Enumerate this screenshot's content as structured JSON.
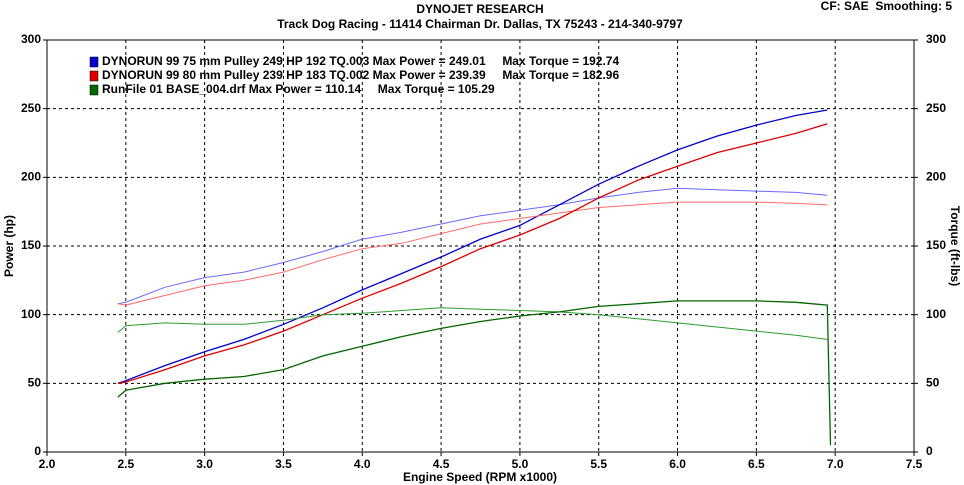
{
  "chart_data": {
    "type": "line",
    "title": "DYNOJET RESEARCH",
    "subtitle": "Track Dog Racing - 11414 Chairman Dr. Dallas, TX 75243 - 214-340-9797",
    "corner_note": "CF: SAE  Smoothing: 5",
    "xlabel": "Engine Speed (RPM x1000)",
    "ylabel": "Power (hp)",
    "y2label": "Torque (ft-lbs)",
    "x": [
      2.45,
      2.5,
      2.75,
      3.0,
      3.25,
      3.5,
      3.75,
      4.0,
      4.25,
      4.5,
      4.75,
      5.0,
      5.25,
      5.5,
      5.75,
      6.0,
      6.25,
      6.5,
      6.75,
      6.95,
      6.97
    ],
    "series": [
      {
        "name": "DYNORUN 99 75 mm Pulley 249 HP 192 TQ.003 Max Power = 249.01     Max Torque = 192.74",
        "color": "#0000cc",
        "torque_color": "#6a6aff",
        "values": [
          50,
          52,
          63,
          73,
          82,
          93,
          105,
          118,
          130,
          142,
          155,
          165,
          180,
          195,
          208,
          220,
          230,
          238,
          245,
          249,
          null
        ],
        "y2_values": [
          108,
          109,
          120,
          127,
          131,
          138,
          146,
          155,
          160,
          166,
          172,
          176,
          180,
          185,
          189,
          192,
          191,
          190,
          189,
          187,
          null
        ]
      },
      {
        "name": "DYNORUN 99 80 mm Pulley 239 HP 183 TQ.002 Max Power = 239.39     Max Torque = 182.96",
        "color": "#dd0000",
        "torque_color": "#ff6a6a",
        "values": [
          50,
          51,
          60,
          70,
          78,
          88,
          100,
          112,
          123,
          135,
          148,
          158,
          170,
          185,
          198,
          208,
          218,
          225,
          232,
          239,
          null
        ],
        "y2_values": [
          108,
          107,
          114,
          121,
          125,
          131,
          140,
          148,
          152,
          159,
          166,
          170,
          174,
          178,
          180,
          182,
          182,
          182,
          181,
          180,
          null
        ]
      },
      {
        "name": "RunFile 01 BASE_004.drf Max Power = 110.14     Max Torque = 105.29",
        "color": "#006600",
        "torque_color": "#2f9a2f",
        "values": [
          40,
          45,
          50,
          53,
          55,
          60,
          70,
          77,
          84,
          90,
          95,
          99,
          102,
          106,
          108,
          110,
          110,
          110,
          109,
          107,
          5
        ],
        "y2_values": [
          87,
          92,
          94,
          93,
          93,
          96,
          100,
          101,
          103,
          105,
          104,
          103,
          102,
          100,
          97,
          94,
          91,
          88,
          85,
          82,
          null
        ]
      }
    ],
    "xlim": [
      2.0,
      7.5
    ],
    "xticks": [
      {
        "value": 2,
        "label": "2.0"
      },
      2.5,
      {
        "value": 3,
        "label": "3.0"
      },
      3.5,
      {
        "value": 4,
        "label": "4.0"
      },
      4.5,
      {
        "value": 5,
        "label": "5.0"
      },
      5.5,
      {
        "value": 6,
        "label": "6.0"
      },
      6.5,
      {
        "value": 7,
        "label": "7.0"
      },
      7.5
    ],
    "ylim": [
      0,
      300
    ],
    "yticks": [
      0,
      50,
      100,
      150,
      200,
      250,
      300
    ],
    "y2lim": [
      0,
      300
    ],
    "y2ticks": [
      0,
      50,
      100,
      150,
      200,
      250,
      300
    ],
    "grid": true
  }
}
